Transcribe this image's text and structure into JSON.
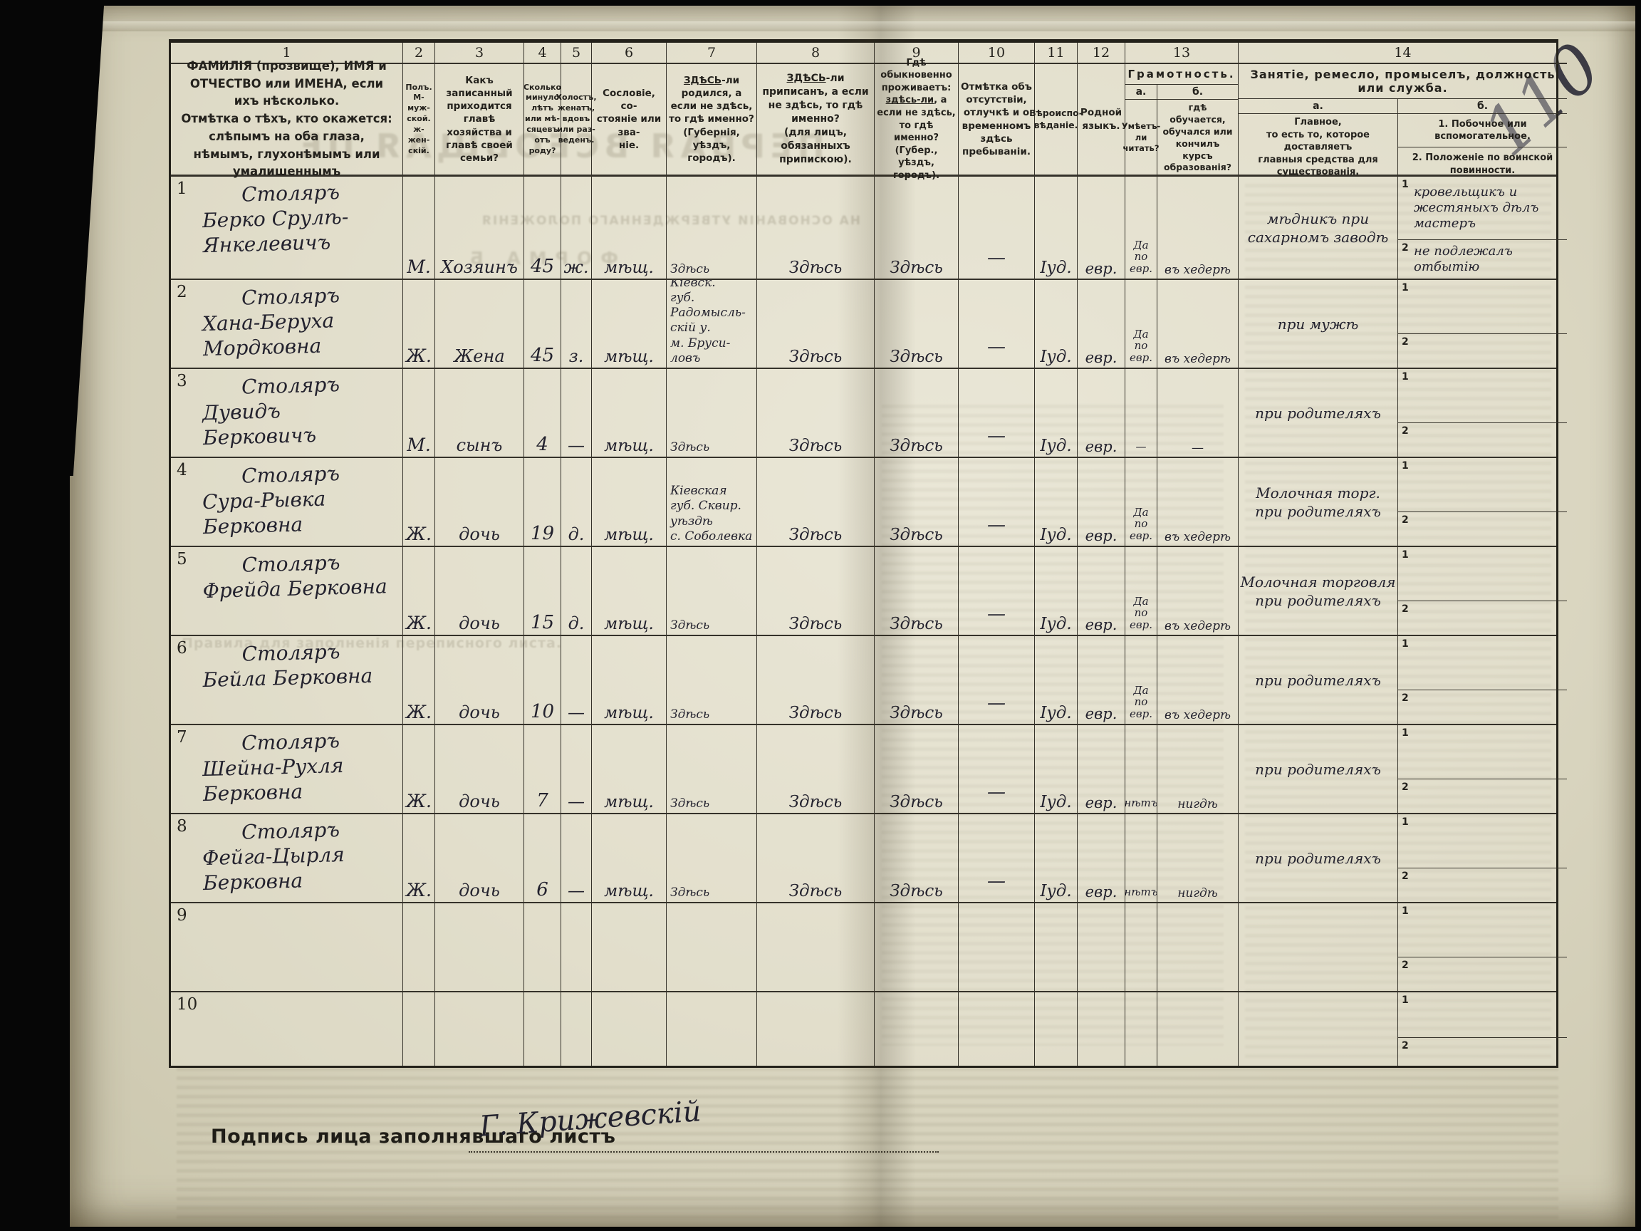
{
  "page": {
    "sheet_number": "110",
    "signature_label": "Подпись лица заполнявшаго листъ",
    "signature_value": "Г. Крижевскій"
  },
  "bleedthrough": {
    "title": "ПЕРВАЯ ВСЕОБЩАЯ ПЕ",
    "subtitle": "НА ОСНОВАНІИ УТВЕРЖДЕННАГО ПОЛОЖЕНІЯ",
    "form": "ФОРМА Б",
    "rules": "Правила для заполненія переписного листа."
  },
  "table": {
    "column_numbers": [
      "1",
      "2",
      "3",
      "4",
      "5",
      "6",
      "7",
      "8",
      "9",
      "10",
      "11",
      "12",
      "13",
      "14"
    ],
    "sub_numbers": [
      "1",
      "2"
    ],
    "headers": {
      "c1": "ФАМИЛІЯ (прозвище), ИМЯ и ОТЧЕСТВО или ИМЕНА, если ихъ нѣсколько.\nОтмѣтка о тѣхъ, кто окажется: слѣпымъ на оба глаза, нѣмымъ, глухонѣмымъ или умалишеннымъ",
      "c2": "Полъ.\nМ-муж-\nской.\nж-жен-\nскій.",
      "c3": "Какъ записанный приходится главѣ хозяйства и главѣ своей семьи?",
      "c4": "Сколько\nминуло\nлѣтъ\nили мѣ-\nсяцевъ\nотъ роду?",
      "c5": "Холостъ,\nженатъ,\nвдовъ\nили раз-\nведенъ.",
      "c6": "Сословіе, со-\nстояніе или зва-\nніе.",
      "c7_emph": "ЗДѢСЬ",
      "c7_rest": "-ли родился, а если не здѣсь, то гдѣ именно?\n(Губернія, уѣздъ, городъ).",
      "c8_emph": "ЗДѢСЬ",
      "c8_rest": "-ли приписанъ, а если не здѣсь, то гдѣ именно?\n(для лицъ, обязанныхъ припискою).",
      "c9_pre": "Гдѣ обыкновенно проживаетъ: ",
      "c9_emph": "здѣсь-ли",
      "c9_rest": ", а если не здѣсь, то гдѣ именно?\n(Губер., уѣздъ, городъ).",
      "c10": "Отмѣтка объ отсутствіи, отлучкѣ и о временномъ здѣсь пребываніи.",
      "c11": "Вѣроиспо-\nвѣданіе.",
      "c12": "Родной\nязыкъ.",
      "c13": "Грамотность.",
      "c13a_label": "а.",
      "c13b_label": "б.",
      "c13a": "Умѣетъ-\nли\nчитать?",
      "c13b": "гдѣ обучается, обучался или кончилъ курсъ образованія?",
      "c14": "Занятіе, ремесло, промыселъ, должность или служба.",
      "c14a_label": "а.",
      "c14b_label": "б.",
      "c14a": "Главное,\nто есть то, которое доставляетъ\nглавныя средства для существованія.",
      "c14b_1": "1. Побочное или вспомогательное.",
      "c14b_2": "2. Положеніе по воинской повинности."
    },
    "rows": [
      {
        "num": "1",
        "name": "Столяръ\nБерко Срулѣ-\nЯнкелевичъ",
        "sex": "М.",
        "relation": "Хозяинъ",
        "age": "45",
        "marital": "ж.",
        "estate": "мѣщ.",
        "birthplace": "Здѣсь",
        "registered": "Здѣсь",
        "residence": "Здѣсь",
        "absence": "—",
        "religion": "Іуд.",
        "language": "евр.",
        "reads": "Да по евр.",
        "education": "въ хедерѣ",
        "occupation": "мѣдникъ при сахарномъ заводѣ",
        "side_occupation": "кровельщикъ и жестяныхъ дѣлъ мастеръ",
        "military": "не подлежалъ отбытію"
      },
      {
        "num": "2",
        "name": "Столяръ\nХана-Беруха\nМордковна",
        "sex": "Ж.",
        "relation": "Жена",
        "age": "45",
        "marital": "з.",
        "estate": "мѣщ.",
        "birthplace": "Кіевск.\nгуб. Радомысль-\nскій у.\nм. Бруси-\nловъ",
        "registered": "Здѣсь",
        "residence": "Здѣсь",
        "absence": "—",
        "religion": "Іуд.",
        "language": "евр.",
        "reads": "Да по евр.",
        "education": "въ хедерѣ",
        "occupation": "при мужѣ",
        "side_occupation": "",
        "military": ""
      },
      {
        "num": "3",
        "name": "Столяръ\nДувидъ Берковичъ",
        "sex": "М.",
        "relation": "сынъ",
        "age": "4",
        "marital": "—",
        "estate": "мѣщ.",
        "birthplace": "Здѣсь",
        "registered": "Здѣсь",
        "residence": "Здѣсь",
        "absence": "—",
        "religion": "Іуд.",
        "language": "евр.",
        "reads": "—",
        "education": "—",
        "occupation": "при родителяхъ",
        "side_occupation": "",
        "military": ""
      },
      {
        "num": "4",
        "name": "Столяръ\nСура-Рывка\nБерковна",
        "sex": "Ж.",
        "relation": "дочь",
        "age": "19",
        "marital": "д.",
        "estate": "мѣщ.",
        "birthplace": "Кіевская\nгуб. Сквир.\nуѣздѣ\nс. Соболевка",
        "registered": "Здѣсь",
        "residence": "Здѣсь",
        "absence": "—",
        "religion": "Іуд.",
        "language": "евр.",
        "reads": "Да по евр.",
        "education": "въ хедерѣ",
        "occupation": "Молочная торг.\nпри родителяхъ",
        "side_occupation": "",
        "military": ""
      },
      {
        "num": "5",
        "name": "Столяръ\nФрейда Берковна",
        "sex": "Ж.",
        "relation": "дочь",
        "age": "15",
        "marital": "д.",
        "estate": "мѣщ.",
        "birthplace": "Здѣсь",
        "registered": "Здѣсь",
        "residence": "Здѣсь",
        "absence": "—",
        "religion": "Іуд.",
        "language": "евр.",
        "reads": "Да по евр.",
        "education": "въ хедерѣ",
        "occupation": "Молочная торговля\nпри родителяхъ",
        "side_occupation": "",
        "military": ""
      },
      {
        "num": "6",
        "name": "Столяръ\nБейла Берковна",
        "sex": "Ж.",
        "relation": "дочь",
        "age": "10",
        "marital": "—",
        "estate": "мѣщ.",
        "birthplace": "Здѣсь",
        "registered": "Здѣсь",
        "residence": "Здѣсь",
        "absence": "—",
        "religion": "Іуд.",
        "language": "евр.",
        "reads": "Да по евр.",
        "education": "въ хедерѣ",
        "occupation": "при родителяхъ",
        "side_occupation": "",
        "military": ""
      },
      {
        "num": "7",
        "name": "Столяръ\nШейна-Рухля\nБерковна",
        "sex": "Ж.",
        "relation": "дочь",
        "age": "7",
        "marital": "—",
        "estate": "мѣщ.",
        "birthplace": "Здѣсь",
        "registered": "Здѣсь",
        "residence": "Здѣсь",
        "absence": "—",
        "religion": "Іуд.",
        "language": "евр.",
        "reads": "нѣтъ",
        "education": "нигдѣ",
        "occupation": "при родителяхъ",
        "side_occupation": "",
        "military": ""
      },
      {
        "num": "8",
        "name": "Столяръ\nФейга-Цырля\nБерковна",
        "sex": "Ж.",
        "relation": "дочь",
        "age": "6",
        "marital": "—",
        "estate": "мѣщ.",
        "birthplace": "Здѣсь",
        "registered": "Здѣсь",
        "residence": "Здѣсь",
        "absence": "—",
        "religion": "Іуд.",
        "language": "евр.",
        "reads": "нѣтъ",
        "education": "нигдѣ",
        "occupation": "при родителяхъ",
        "side_occupation": "",
        "military": ""
      },
      {
        "num": "9",
        "name": "",
        "sex": "",
        "relation": "",
        "age": "",
        "marital": "",
        "estate": "",
        "birthplace": "",
        "registered": "",
        "residence": "",
        "absence": "",
        "religion": "",
        "language": "",
        "reads": "",
        "education": "",
        "occupation": "",
        "side_occupation": "",
        "military": ""
      },
      {
        "num": "10",
        "name": "",
        "sex": "",
        "relation": "",
        "age": "",
        "marital": "",
        "estate": "",
        "birthplace": "",
        "registered": "",
        "residence": "",
        "absence": "",
        "religion": "",
        "language": "",
        "reads": "",
        "education": "",
        "occupation": "",
        "side_occupation": "",
        "military": ""
      }
    ]
  }
}
